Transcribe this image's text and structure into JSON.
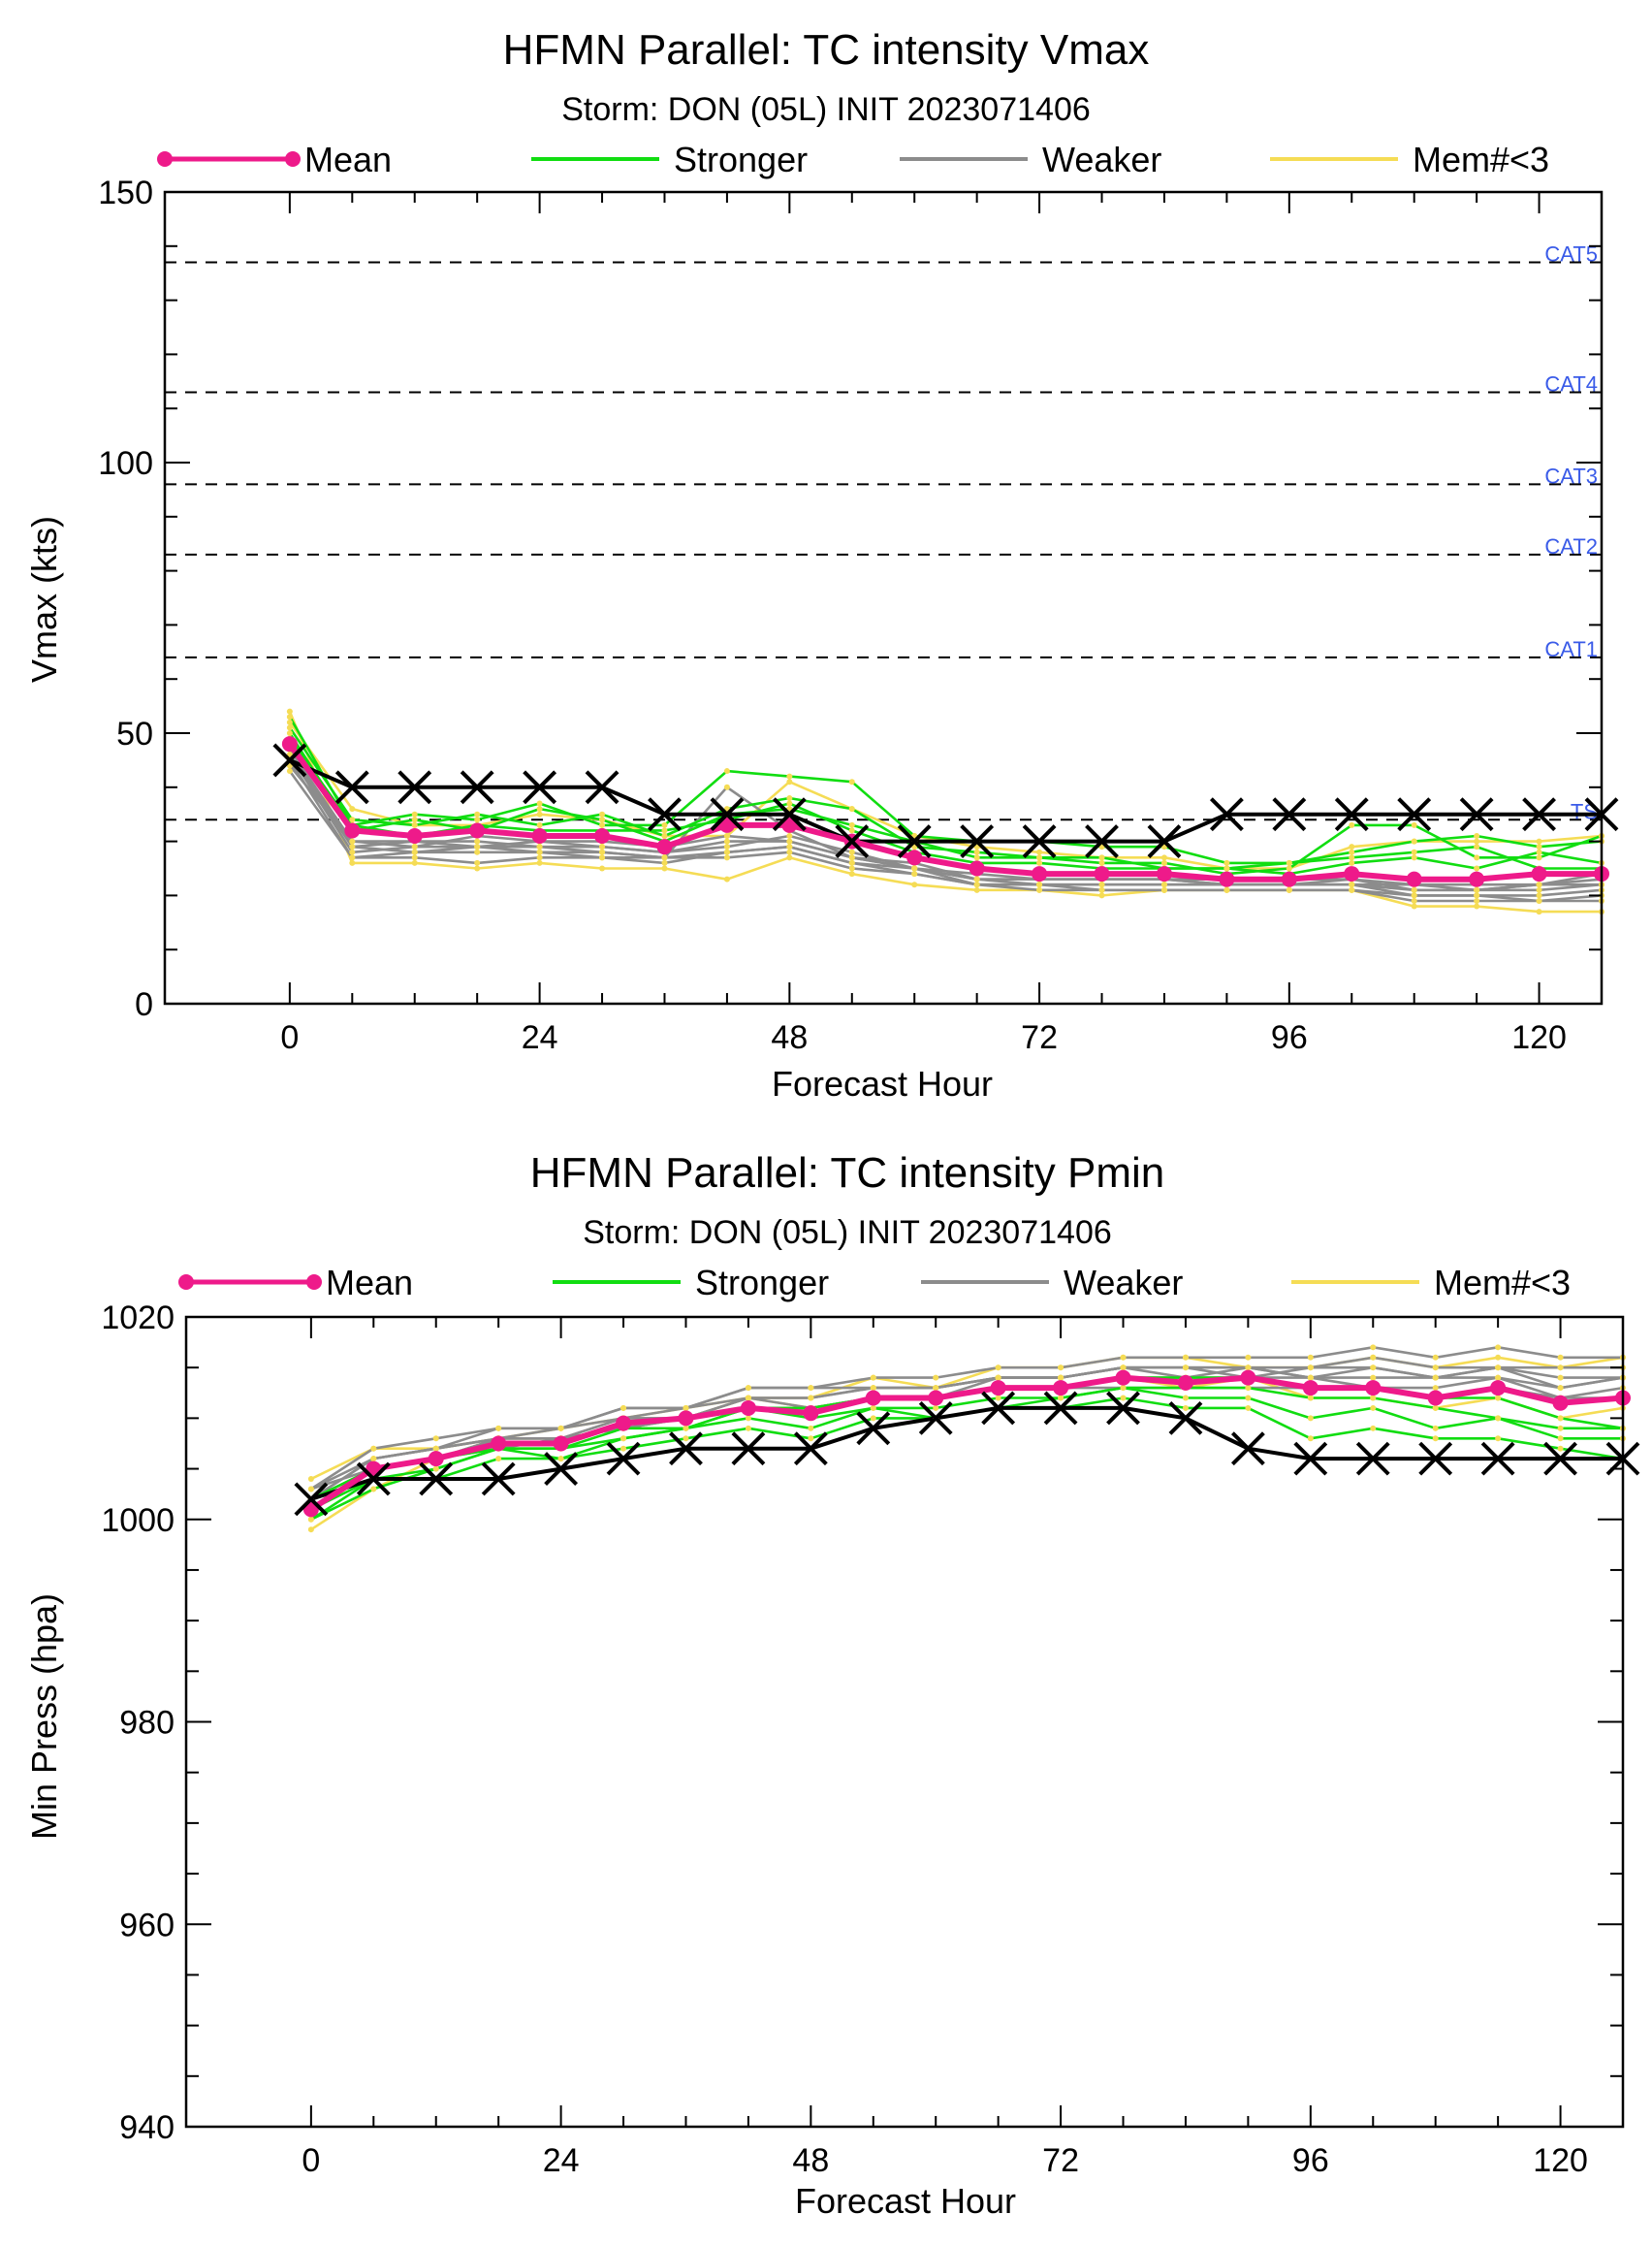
{
  "colors": {
    "mean": "#ee1a8a",
    "stronger": "#11dd11",
    "weaker": "#8c8c8c",
    "memlt3": "#f5dc55",
    "best_track": "#000000",
    "category_label": "#3a5be8"
  },
  "legend_labels": {
    "mean": "Mean",
    "stronger": "Stronger",
    "weaker": "Weaker",
    "memlt3": "Mem#<3"
  },
  "chart_data": [
    {
      "type": "line",
      "title": "HFMN Parallel: TC intensity Vmax",
      "subtitle": "Storm: DON (05L) INIT 2023071406",
      "xlabel": "Forecast Hour",
      "ylabel": "Vmax (kts)",
      "xlim": [
        -12,
        126
      ],
      "ylim": [
        0,
        150
      ],
      "xticks": [
        0,
        24,
        48,
        72,
        96,
        120
      ],
      "yticks": [
        0,
        50,
        100,
        150
      ],
      "grid": false,
      "legend_placement": "top",
      "x": [
        0,
        6,
        12,
        18,
        24,
        30,
        36,
        42,
        48,
        54,
        60,
        66,
        72,
        78,
        84,
        90,
        96,
        102,
        108,
        114,
        120,
        126
      ],
      "reference_lines": [
        {
          "name": "CAT5",
          "value": 137
        },
        {
          "name": "CAT4",
          "value": 113
        },
        {
          "name": "CAT3",
          "value": 96
        },
        {
          "name": "CAT2",
          "value": 83
        },
        {
          "name": "CAT1",
          "value": 64
        },
        {
          "name": "TS",
          "value": 34
        }
      ],
      "series": [
        {
          "name": "Mean",
          "role": "mean",
          "values": [
            48,
            32,
            31,
            32,
            31,
            31,
            29,
            33,
            33,
            30,
            27,
            25,
            24,
            24,
            24,
            23,
            23,
            24,
            23,
            23,
            24,
            24
          ]
        },
        {
          "name": "Best track",
          "role": "best_track",
          "values": [
            45,
            40,
            40,
            40,
            40,
            40,
            35,
            35,
            35,
            30,
            30,
            30,
            30,
            30,
            30,
            35,
            35,
            35,
            35,
            35,
            35,
            35
          ]
        },
        {
          "name": "Stronger",
          "role": "stronger",
          "values": [
            53,
            33,
            35,
            34,
            37,
            33,
            33,
            43,
            42,
            41,
            31,
            30,
            30,
            29,
            29,
            26,
            26,
            28,
            30,
            31,
            29,
            30
          ]
        },
        {
          "name": "Stronger",
          "role": "stronger",
          "values": [
            51,
            34,
            33,
            35,
            33,
            35,
            31,
            36,
            38,
            36,
            29,
            28,
            27,
            26,
            26,
            24,
            25,
            33,
            33,
            27,
            27,
            31
          ]
        },
        {
          "name": "Stronger",
          "role": "stronger",
          "values": [
            50,
            32,
            34,
            32,
            36,
            34,
            30,
            35,
            36,
            33,
            30,
            27,
            27,
            27,
            25,
            25,
            24,
            26,
            27,
            25,
            28,
            26
          ]
        },
        {
          "name": "Stronger",
          "role": "stronger",
          "values": [
            49,
            33,
            31,
            33,
            32,
            32,
            32,
            34,
            37,
            32,
            28,
            26,
            26,
            25,
            25,
            25,
            26,
            27,
            28,
            29,
            25,
            25
          ]
        },
        {
          "name": "Weaker",
          "role": "weaker",
          "values": [
            47,
            29,
            30,
            30,
            29,
            29,
            28,
            30,
            30,
            27,
            26,
            23,
            22,
            22,
            22,
            22,
            22,
            22,
            21,
            21,
            21,
            22
          ]
        },
        {
          "name": "Weaker",
          "role": "weaker",
          "values": [
            46,
            28,
            29,
            29,
            28,
            28,
            27,
            28,
            29,
            26,
            25,
            22,
            22,
            22,
            22,
            22,
            22,
            22,
            20,
            20,
            20,
            21
          ]
        },
        {
          "name": "Weaker",
          "role": "weaker",
          "values": [
            45,
            27,
            28,
            28,
            28,
            27,
            27,
            27,
            28,
            25,
            24,
            22,
            22,
            21,
            21,
            21,
            21,
            21,
            20,
            20,
            19,
            20
          ]
        },
        {
          "name": "Weaker",
          "role": "weaker",
          "values": [
            44,
            30,
            29,
            31,
            30,
            30,
            29,
            31,
            30,
            27,
            25,
            23,
            23,
            23,
            23,
            22,
            22,
            22,
            22,
            21,
            22,
            23
          ]
        },
        {
          "name": "Weaker",
          "role": "weaker",
          "values": [
            43,
            27,
            27,
            26,
            27,
            27,
            26,
            28,
            29,
            26,
            24,
            22,
            21,
            21,
            21,
            21,
            21,
            21,
            19,
            19,
            19,
            19
          ]
        },
        {
          "name": "Weaker",
          "role": "weaker",
          "values": [
            47,
            30,
            30,
            29,
            30,
            29,
            28,
            29,
            31,
            28,
            25,
            24,
            23,
            23,
            23,
            23,
            23,
            23,
            22,
            22,
            22,
            24
          ]
        },
        {
          "name": "Weaker",
          "role": "weaker",
          "values": [
            46,
            29,
            28,
            29,
            29,
            28,
            27,
            40,
            32,
            27,
            25,
            23,
            23,
            23,
            23,
            22,
            22,
            23,
            21,
            21,
            22,
            22
          ]
        },
        {
          "name": "Mem#<3",
          "role": "memlt3",
          "values": [
            54,
            26,
            26,
            25,
            26,
            25,
            25,
            23,
            27,
            24,
            22,
            21,
            21,
            20,
            21,
            21,
            21,
            21,
            18,
            18,
            17,
            17
          ]
        },
        {
          "name": "Mem#<3",
          "role": "memlt3",
          "values": [
            52,
            36,
            33,
            33,
            35,
            34,
            31,
            31,
            41,
            36,
            31,
            29,
            28,
            27,
            27,
            25,
            25,
            29,
            30,
            30,
            30,
            31
          ]
        }
      ]
    },
    {
      "type": "line",
      "title": "HFMN Parallel: TC intensity Pmin",
      "subtitle": "Storm: DON (05L) INIT 2023071406",
      "xlabel": "Forecast Hour",
      "ylabel": "Min Press (hpa)",
      "xlim": [
        -12,
        126
      ],
      "ylim": [
        940,
        1020
      ],
      "xticks": [
        0,
        24,
        48,
        72,
        96,
        120
      ],
      "yticks": [
        940,
        960,
        980,
        1000,
        1020
      ],
      "grid": false,
      "legend_placement": "top",
      "x": [
        0,
        6,
        12,
        18,
        24,
        30,
        36,
        42,
        48,
        54,
        60,
        66,
        72,
        78,
        84,
        90,
        96,
        102,
        108,
        114,
        120,
        126
      ],
      "reference_lines": [],
      "series": [
        {
          "name": "Mean",
          "role": "mean",
          "values": [
            1001,
            1005,
            1006,
            1007.5,
            1007.5,
            1009.5,
            1010,
            1011,
            1010.5,
            1012,
            1012,
            1013,
            1013,
            1014,
            1013.5,
            1014,
            1013,
            1013,
            1012,
            1013,
            1011.5,
            1012
          ]
        },
        {
          "name": "Best track",
          "role": "best_track",
          "values": [
            1002,
            1004,
            1004,
            1004,
            1005,
            1006,
            1007,
            1007,
            1007,
            1009,
            1010,
            1011,
            1011,
            1011,
            1010,
            1007,
            1006,
            1006,
            1006,
            1006,
            1006,
            1006
          ]
        },
        {
          "name": "Stronger",
          "role": "stronger",
          "values": [
            1000,
            1003,
            1005,
            1007,
            1006,
            1008,
            1009,
            1010,
            1009,
            1011,
            1010,
            1011,
            1012,
            1013,
            1012,
            1012,
            1010,
            1011,
            1009,
            1010,
            1008,
            1008
          ]
        },
        {
          "name": "Stronger",
          "role": "stronger",
          "values": [
            1000,
            1004,
            1004,
            1006,
            1006,
            1007,
            1008,
            1009,
            1008,
            1010,
            1010,
            1011,
            1011,
            1012,
            1011,
            1011,
            1008,
            1009,
            1008,
            1008,
            1007,
            1006
          ]
        },
        {
          "name": "Stronger",
          "role": "stronger",
          "values": [
            1001,
            1004,
            1005,
            1007,
            1007,
            1008,
            1009,
            1011,
            1010,
            1011,
            1011,
            1012,
            1012,
            1013,
            1013,
            1013,
            1012,
            1012,
            1011,
            1010,
            1009,
            1009
          ]
        },
        {
          "name": "Stronger",
          "role": "stronger",
          "values": [
            1002,
            1005,
            1006,
            1007,
            1007,
            1009,
            1009,
            1011,
            1011,
            1012,
            1012,
            1013,
            1013,
            1014,
            1014,
            1014,
            1013,
            1013,
            1012,
            1012,
            1010,
            1009
          ]
        },
        {
          "name": "Weaker",
          "role": "weaker",
          "values": [
            1003,
            1006,
            1007,
            1009,
            1009,
            1011,
            1011,
            1013,
            1013,
            1014,
            1014,
            1015,
            1015,
            1016,
            1016,
            1016,
            1016,
            1017,
            1016,
            1017,
            1016,
            1016
          ]
        },
        {
          "name": "Weaker",
          "role": "weaker",
          "values": [
            1002,
            1006,
            1007,
            1008,
            1008,
            1010,
            1010,
            1012,
            1012,
            1013,
            1013,
            1014,
            1014,
            1015,
            1015,
            1015,
            1015,
            1016,
            1015,
            1015,
            1015,
            1015
          ]
        },
        {
          "name": "Weaker",
          "role": "weaker",
          "values": [
            1003,
            1005,
            1006,
            1008,
            1008,
            1010,
            1010,
            1012,
            1011,
            1012,
            1012,
            1014,
            1014,
            1015,
            1014,
            1015,
            1014,
            1014,
            1014,
            1014,
            1013,
            1014
          ]
        },
        {
          "name": "Weaker",
          "role": "weaker",
          "values": [
            1002,
            1005,
            1006,
            1007,
            1008,
            1009,
            1010,
            1011,
            1011,
            1012,
            1012,
            1013,
            1013,
            1014,
            1014,
            1014,
            1014,
            1013,
            1013,
            1014,
            1012,
            1013
          ]
        },
        {
          "name": "Weaker",
          "role": "weaker",
          "values": [
            1002,
            1006,
            1007,
            1008,
            1009,
            1010,
            1011,
            1012,
            1012,
            1013,
            1013,
            1014,
            1014,
            1015,
            1015,
            1015,
            1014,
            1015,
            1014,
            1015,
            1014,
            1014
          ]
        },
        {
          "name": "Weaker",
          "role": "weaker",
          "values": [
            1001,
            1005,
            1006,
            1008,
            1008,
            1009,
            1010,
            1011,
            1011,
            1012,
            1012,
            1013,
            1013,
            1013,
            1013,
            1013,
            1013,
            1013,
            1012,
            1013,
            1012,
            1012
          ]
        },
        {
          "name": "Weaker",
          "role": "weaker",
          "values": [
            1003,
            1007,
            1008,
            1009,
            1009,
            1011,
            1011,
            1013,
            1013,
            1013,
            1013,
            1014,
            1014,
            1015,
            1015,
            1014,
            1015,
            1015,
            1014,
            1015,
            1013,
            1014
          ]
        },
        {
          "name": "Mem#<3",
          "role": "memlt3",
          "values": [
            999,
            1003,
            1006,
            1008,
            1008,
            1009,
            1010,
            1012,
            1012,
            1014,
            1013,
            1015,
            1015,
            1016,
            1016,
            1015,
            1015,
            1016,
            1015,
            1016,
            1015,
            1016
          ]
        },
        {
          "name": "Mem#<3",
          "role": "memlt3",
          "values": [
            1004,
            1007,
            1007,
            1008,
            1009,
            1010,
            1011,
            1012,
            1011,
            1012,
            1012,
            1013,
            1013,
            1014,
            1013,
            1014,
            1012,
            1012,
            1011,
            1012,
            1010,
            1011
          ]
        }
      ]
    }
  ]
}
